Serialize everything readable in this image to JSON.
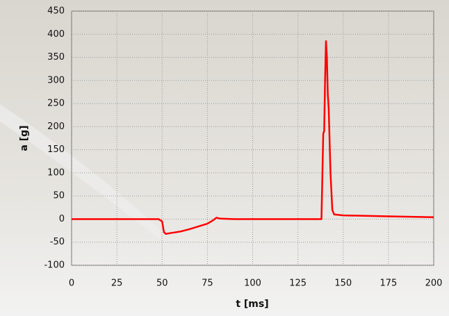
{
  "chart_data": {
    "type": "line",
    "x_label": "t [ms]",
    "y_label": "a [g]",
    "x": [
      0,
      48,
      50,
      51,
      52,
      55,
      60,
      65,
      70,
      75,
      78,
      80,
      82,
      90,
      138,
      139,
      139.5,
      140,
      140.5,
      141,
      141.5,
      142,
      143,
      144,
      145,
      150,
      175,
      200
    ],
    "values": [
      0,
      0,
      -5,
      -28,
      -32,
      -30,
      -27,
      -22,
      -16,
      -10,
      -3,
      3,
      1,
      0,
      0,
      185,
      190,
      300,
      385,
      350,
      270,
      240,
      100,
      20,
      10,
      8,
      6,
      4
    ],
    "color": "#ff0000",
    "xlim": [
      0,
      200
    ],
    "xticks": [
      0,
      25,
      50,
      75,
      100,
      125,
      150,
      175,
      200
    ],
    "ylim": [
      -100,
      450
    ],
    "yticks": [
      -100,
      -50,
      0,
      50,
      100,
      150,
      200,
      250,
      300,
      350,
      400,
      450
    ],
    "grid": true
  }
}
